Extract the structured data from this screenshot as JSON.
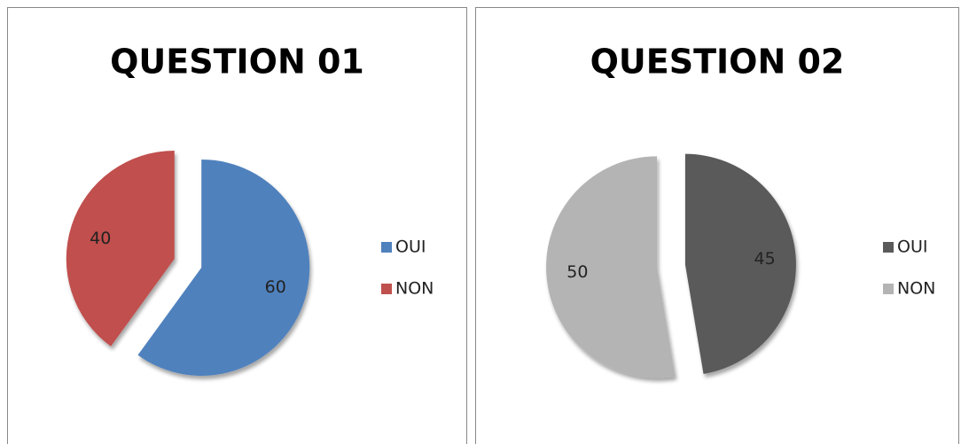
{
  "chart_data": [
    {
      "type": "pie",
      "title": "QUESTION 01",
      "categories": [
        "OUI",
        "NON"
      ],
      "values": [
        60,
        40
      ],
      "colors": [
        "#4f81bd",
        "#c0504d"
      ],
      "legend": "right"
    },
    {
      "type": "pie",
      "title": "QUESTION 02",
      "categories": [
        "OUI",
        "NON"
      ],
      "values": [
        45,
        50
      ],
      "colors": [
        "#5a5a5a",
        "#b4b4b4"
      ],
      "legend": "right"
    }
  ]
}
